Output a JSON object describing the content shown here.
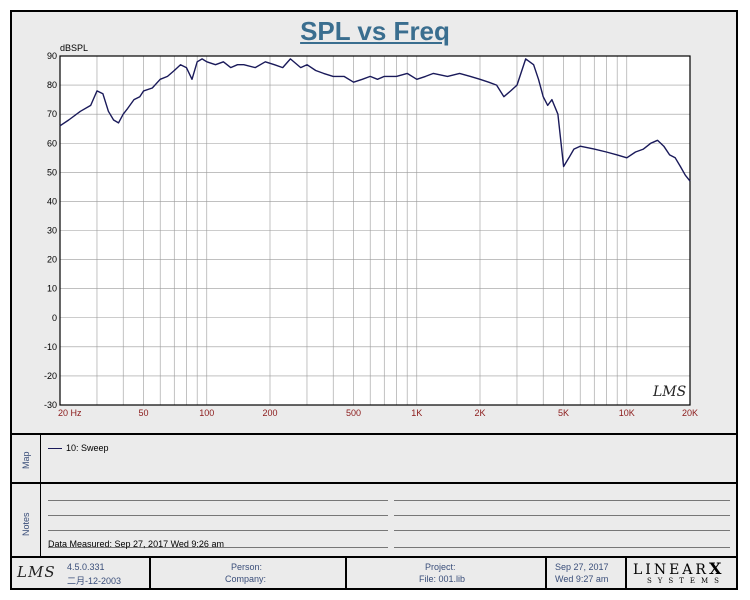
{
  "chart_data": {
    "type": "line",
    "title": "SPL vs Freq",
    "ylabel": "dBSPL",
    "xscale": "log",
    "xlim": [
      20,
      20000
    ],
    "ylim": [
      -30,
      90
    ],
    "grid": true,
    "yticks": [
      90,
      80,
      70,
      60,
      50,
      40,
      30,
      20,
      10,
      0,
      -10,
      -20,
      -30
    ],
    "xticks": [
      {
        "value": 20,
        "label": "20 Hz"
      },
      {
        "value": 50,
        "label": "50"
      },
      {
        "value": 100,
        "label": "100"
      },
      {
        "value": 200,
        "label": "200"
      },
      {
        "value": 500,
        "label": "500"
      },
      {
        "value": 1000,
        "label": "1K"
      },
      {
        "value": 2000,
        "label": "2K"
      },
      {
        "value": 5000,
        "label": "5K"
      },
      {
        "value": 10000,
        "label": "10K"
      },
      {
        "value": 20000,
        "label": "20K"
      }
    ],
    "series": [
      {
        "name": "10: Sweep",
        "color": "#1a1a5a",
        "x": [
          20,
          22,
          25,
          28,
          30,
          32,
          34,
          36,
          38,
          40,
          42,
          45,
          48,
          50,
          55,
          60,
          65,
          70,
          75,
          80,
          85,
          90,
          95,
          100,
          110,
          120,
          130,
          140,
          150,
          170,
          190,
          210,
          230,
          250,
          280,
          300,
          330,
          360,
          400,
          450,
          500,
          550,
          600,
          650,
          700,
          800,
          900,
          1000,
          1100,
          1200,
          1400,
          1600,
          1800,
          2000,
          2200,
          2400,
          2600,
          2800,
          3000,
          3300,
          3600,
          3800,
          4000,
          4200,
          4400,
          4700,
          5000,
          5300,
          5600,
          6000,
          7000,
          8000,
          9000,
          10000,
          11000,
          12000,
          13000,
          14000,
          15000,
          16000,
          17000,
          18000,
          19000,
          20000
        ],
        "y": [
          66,
          68,
          71,
          73,
          78,
          77,
          71,
          68,
          67,
          70,
          72,
          75,
          76,
          78,
          79,
          82,
          83,
          85,
          87,
          86,
          82,
          88,
          89,
          88,
          87,
          88,
          86,
          87,
          87,
          86,
          88,
          87,
          86,
          89,
          86,
          87,
          85,
          84,
          83,
          83,
          81,
          82,
          83,
          82,
          83,
          83,
          84,
          82,
          83,
          84,
          83,
          84,
          83,
          82,
          81,
          80,
          76,
          78,
          80,
          89,
          87,
          82,
          76,
          73,
          75,
          70,
          52,
          55,
          58,
          59,
          58,
          57,
          56,
          55,
          57,
          58,
          60,
          61,
          59,
          56,
          55,
          52,
          49,
          47
        ]
      }
    ]
  },
  "map": {
    "label": "Map",
    "entry": "10: Sweep"
  },
  "notes": {
    "label": "Notes",
    "measured": "Data Measured: Sep 27, 2017  Wed  9:26 am"
  },
  "watermark": "LMS",
  "footer": {
    "logo": "LMS",
    "version": "4.5.0.331",
    "version_date": "二月-12-2003",
    "person": "Person:",
    "company": "Company:",
    "project": "Project:",
    "file": "File: 001.lib",
    "date": "Sep 27, 2017",
    "time": "Wed  9:27 am",
    "brand_top": "LINEAR",
    "brand_x": "X",
    "brand_bottom": "SYSTEMS"
  }
}
